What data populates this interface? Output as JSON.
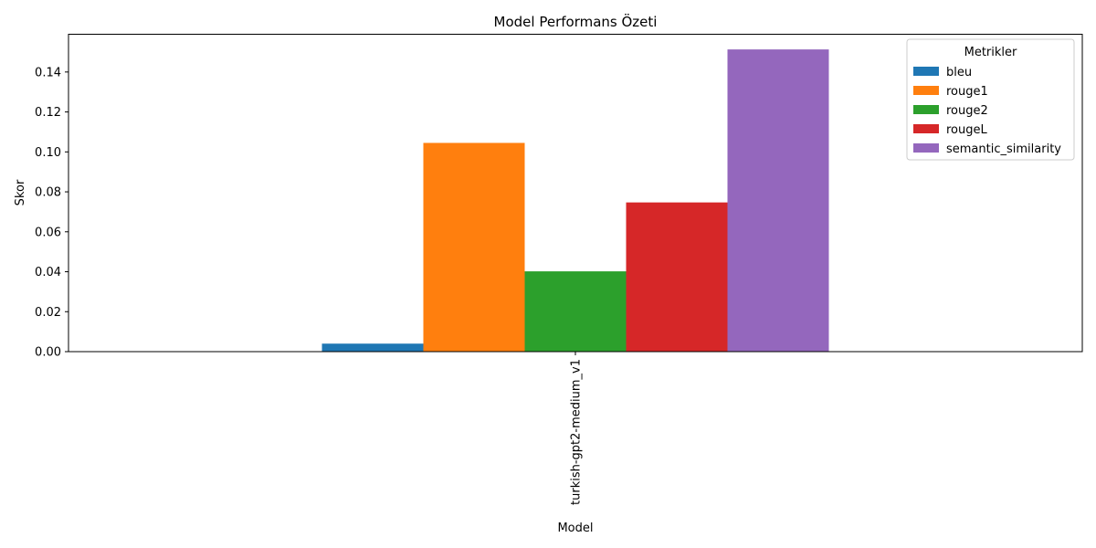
{
  "chart_data": {
    "type": "bar",
    "title": "Model Performans Özeti",
    "xlabel": "Model",
    "ylabel": "Skor",
    "categories": [
      "turkish-gpt2-medium_v1"
    ],
    "series": [
      {
        "name": "bleu",
        "values": [
          0.004
        ],
        "color": "#1f77b4"
      },
      {
        "name": "rouge1",
        "values": [
          0.1045
        ],
        "color": "#ff7f0e"
      },
      {
        "name": "rouge2",
        "values": [
          0.0402
        ],
        "color": "#2ca02c"
      },
      {
        "name": "rougeL",
        "values": [
          0.0747
        ],
        "color": "#d62728"
      },
      {
        "name": "semantic_similarity",
        "values": [
          0.1513
        ],
        "color": "#9467bd"
      }
    ],
    "ylim": [
      0,
      0.1589
    ],
    "yticks": [
      "0.00",
      "0.02",
      "0.04",
      "0.06",
      "0.08",
      "0.10",
      "0.12",
      "0.14"
    ],
    "legend": {
      "title": "Metrikler",
      "placement": "top-right"
    },
    "grid": false
  }
}
